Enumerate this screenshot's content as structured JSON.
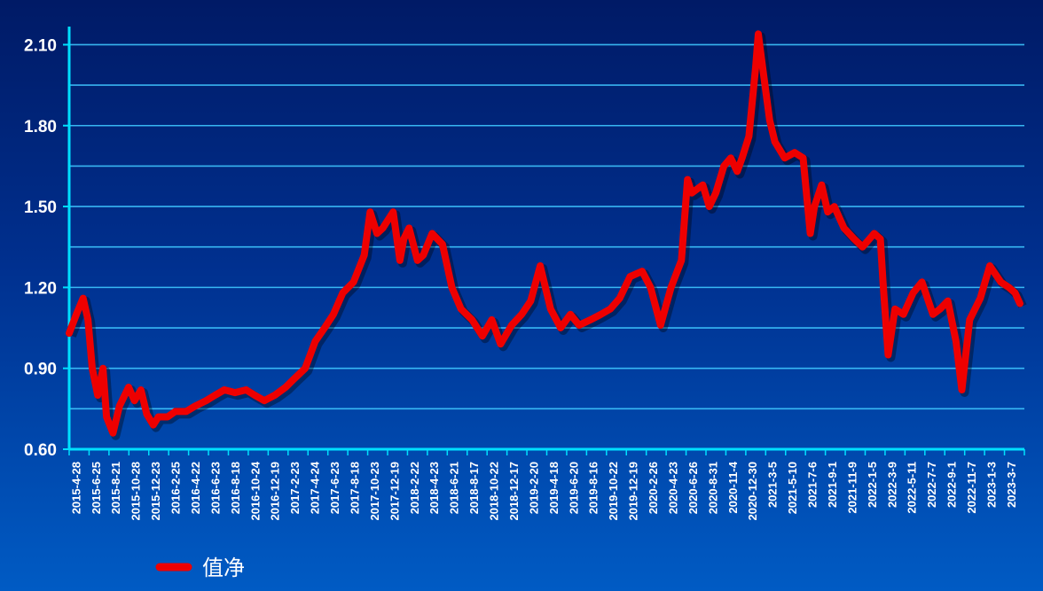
{
  "colors": {
    "background_top": "#001a66",
    "background_bottom": "#005bc4",
    "grid": "#3fc6ff",
    "axis": "#00e0ff",
    "series": "#ee0000",
    "text": "#ffffff"
  },
  "chart_data": {
    "type": "line",
    "title": "",
    "xlabel": "",
    "ylabel": "",
    "ylim": [
      0.6,
      2.2
    ],
    "y_ticks": [
      "0.60",
      "0.90",
      "1.20",
      "1.50",
      "1.80",
      "2.10"
    ],
    "grid": true,
    "legend_position": "bottom-left",
    "x_tick_labels": [
      "2015-4-28",
      "2015-6-25",
      "2015-8-21",
      "2015-10-28",
      "2015-12-23",
      "2016-2-25",
      "2016-4-22",
      "2016-6-23",
      "2016-8-18",
      "2016-10-24",
      "2016-12-19",
      "2017-2-23",
      "2017-4-24",
      "2017-6-23",
      "2017-8-18",
      "2017-10-23",
      "2017-12-19",
      "2018-2-22",
      "2018-4-23",
      "2018-6-21",
      "2018-8-17",
      "2018-10-22",
      "2018-12-17",
      "2019-2-20",
      "2019-4-18",
      "2019-6-20",
      "2019-8-16",
      "2019-10-22",
      "2019-12-19",
      "2020-2-26",
      "2020-4-23",
      "2020-6-26",
      "2020-8-31",
      "2020-11-4",
      "2020-12-30",
      "2021-3-5",
      "2021-5-10",
      "2021-7-6",
      "2021-9-1",
      "2021-11-9",
      "2022-1-5",
      "2022-3-9",
      "2022-5-11",
      "2022-7-7",
      "2022-9-1",
      "2022-11-7",
      "2023-1-3",
      "2023-3-7"
    ],
    "series": [
      {
        "name": "值净",
        "x": [
          "2015-4-28",
          "2015-5-20",
          "2015-6-10",
          "2015-6-25",
          "2015-7-8",
          "2015-7-25",
          "2015-8-10",
          "2015-8-21",
          "2015-9-10",
          "2015-9-30",
          "2015-10-28",
          "2015-11-15",
          "2015-12-5",
          "2015-12-23",
          "2016-1-12",
          "2016-1-28",
          "2016-2-25",
          "2016-3-20",
          "2016-4-22",
          "2016-5-20",
          "2016-6-23",
          "2016-7-20",
          "2016-8-18",
          "2016-9-20",
          "2016-10-24",
          "2016-11-20",
          "2016-12-19",
          "2017-1-20",
          "2017-2-23",
          "2017-3-20",
          "2017-4-24",
          "2017-5-25",
          "2017-6-23",
          "2017-7-20",
          "2017-8-18",
          "2017-9-20",
          "2017-10-23",
          "2017-11-10",
          "2017-12-1",
          "2017-12-19",
          "2018-1-20",
          "2018-2-10",
          "2018-2-22",
          "2018-3-10",
          "2018-4-5",
          "2018-4-23",
          "2018-5-20",
          "2018-6-21",
          "2018-7-20",
          "2018-8-17",
          "2018-9-20",
          "2018-10-22",
          "2018-11-20",
          "2018-12-17",
          "2019-1-20",
          "2019-2-20",
          "2019-3-20",
          "2019-4-18",
          "2019-5-20",
          "2019-6-20",
          "2019-7-20",
          "2019-8-16",
          "2019-9-20",
          "2019-10-22",
          "2019-11-20",
          "2019-12-19",
          "2020-1-20",
          "2020-2-26",
          "2020-3-23",
          "2020-4-23",
          "2020-5-25",
          "2020-6-26",
          "2020-7-15",
          "2020-7-28",
          "2020-8-31",
          "2020-9-20",
          "2020-10-10",
          "2020-11-4",
          "2020-11-25",
          "2020-12-15",
          "2020-12-30",
          "2021-1-20",
          "2021-2-10",
          "2021-2-18",
          "2021-3-5",
          "2021-3-25",
          "2021-4-10",
          "2021-5-10",
          "2021-6-10",
          "2021-7-6",
          "2021-7-28",
          "2021-8-10",
          "2021-9-1",
          "2021-9-20",
          "2021-10-10",
          "2021-11-9",
          "2021-12-10",
          "2022-1-5",
          "2022-2-10",
          "2022-3-1",
          "2022-3-9",
          "2022-3-25",
          "2022-4-15",
          "2022-5-11",
          "2022-6-10",
          "2022-7-7",
          "2022-8-10",
          "2022-9-1",
          "2022-9-25",
          "2022-10-20",
          "2022-11-7",
          "2022-12-1",
          "2023-1-3",
          "2023-2-1",
          "2023-3-7",
          "2023-4-1",
          "2023-4-20",
          "2023-5-5"
        ],
        "values": [
          1.03,
          1.1,
          1.16,
          1.08,
          0.9,
          0.8,
          0.9,
          0.72,
          0.66,
          0.76,
          0.83,
          0.78,
          0.82,
          0.73,
          0.69,
          0.72,
          0.72,
          0.74,
          0.74,
          0.76,
          0.78,
          0.8,
          0.82,
          0.81,
          0.82,
          0.8,
          0.78,
          0.8,
          0.83,
          0.86,
          0.9,
          1.0,
          1.05,
          1.1,
          1.18,
          1.22,
          1.32,
          1.48,
          1.4,
          1.42,
          1.48,
          1.3,
          1.38,
          1.42,
          1.3,
          1.32,
          1.4,
          1.36,
          1.2,
          1.12,
          1.08,
          1.02,
          1.08,
          0.99,
          1.06,
          1.1,
          1.15,
          1.28,
          1.12,
          1.05,
          1.1,
          1.06,
          1.08,
          1.1,
          1.12,
          1.16,
          1.24,
          1.26,
          1.2,
          1.06,
          1.2,
          1.3,
          1.6,
          1.55,
          1.58,
          1.5,
          1.55,
          1.65,
          1.68,
          1.63,
          1.68,
          1.76,
          2.02,
          2.14,
          2.0,
          1.82,
          1.74,
          1.68,
          1.7,
          1.68,
          1.4,
          1.5,
          1.58,
          1.48,
          1.5,
          1.42,
          1.38,
          1.35,
          1.4,
          1.38,
          1.22,
          0.95,
          1.12,
          1.1,
          1.18,
          1.22,
          1.1,
          1.12,
          1.15,
          1.0,
          0.82,
          1.08,
          1.16,
          1.28,
          1.22,
          1.2,
          1.18,
          1.14
        ]
      }
    ]
  }
}
